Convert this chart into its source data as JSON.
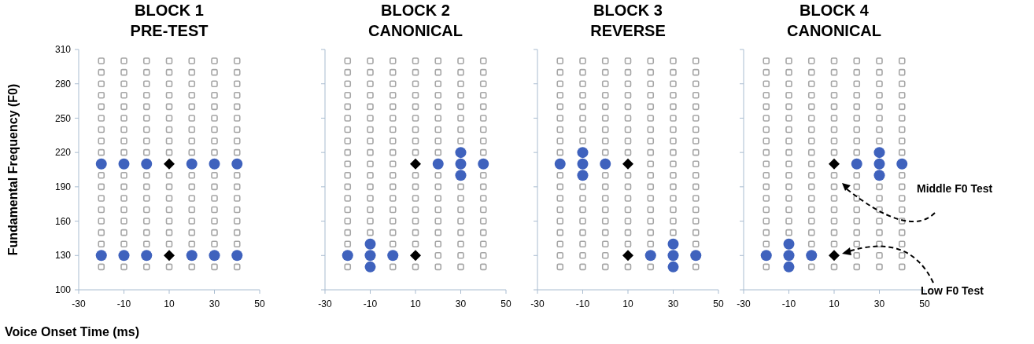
{
  "chart_data": [
    {
      "type": "scatter",
      "title": "BLOCK 1",
      "subtitle": "PRE-TEST",
      "xlabel": "Voice Onset Time (ms)",
      "ylabel": "Fundamental Frequency (F0)",
      "xlim": [
        -30,
        50
      ],
      "xticks": [
        -30,
        -10,
        10,
        30,
        50
      ],
      "ylim": [
        100,
        310
      ],
      "yticks": [
        100,
        130,
        160,
        190,
        220,
        250,
        280,
        310
      ],
      "series": [
        {
          "marker": "square",
          "color": "#a6a6a6",
          "x": [
            -20,
            -20,
            -20,
            -20,
            -20,
            -20,
            -20,
            -20,
            -20,
            -20,
            -20,
            -20,
            -20,
            -20,
            -20,
            -20,
            -20
          ],
          "values": [
            120,
            140,
            150,
            160,
            170,
            180,
            190,
            200,
            220,
            230,
            240,
            250,
            260,
            270,
            280,
            290,
            300
          ]
        },
        {
          "marker": "square",
          "color": "#a6a6a6",
          "x": [
            -10,
            -10,
            -10,
            -10,
            -10,
            -10,
            -10,
            -10,
            -10,
            -10,
            -10,
            -10,
            -10,
            -10,
            -10,
            -10,
            -10
          ],
          "values": [
            120,
            140,
            150,
            160,
            170,
            180,
            190,
            200,
            220,
            230,
            240,
            250,
            260,
            270,
            280,
            290,
            300
          ]
        },
        {
          "marker": "square",
          "color": "#a6a6a6",
          "x": [
            0,
            0,
            0,
            0,
            0,
            0,
            0,
            0,
            0,
            0,
            0,
            0,
            0,
            0,
            0,
            0,
            0
          ],
          "values": [
            120,
            140,
            150,
            160,
            170,
            180,
            190,
            200,
            220,
            230,
            240,
            250,
            260,
            270,
            280,
            290,
            300
          ]
        },
        {
          "marker": "square",
          "color": "#a6a6a6",
          "x": [
            10,
            10,
            10,
            10,
            10,
            10,
            10,
            10,
            10,
            10,
            10,
            10,
            10,
            10,
            10,
            10,
            10
          ],
          "values": [
            120,
            140,
            150,
            160,
            170,
            180,
            190,
            200,
            220,
            230,
            240,
            250,
            260,
            270,
            280,
            290,
            300
          ]
        },
        {
          "marker": "square",
          "color": "#a6a6a6",
          "x": [
            20,
            20,
            20,
            20,
            20,
            20,
            20,
            20,
            20,
            20,
            20,
            20,
            20,
            20,
            20,
            20,
            20
          ],
          "values": [
            120,
            140,
            150,
            160,
            170,
            180,
            190,
            200,
            220,
            230,
            240,
            250,
            260,
            270,
            280,
            290,
            300
          ]
        },
        {
          "marker": "square",
          "color": "#a6a6a6",
          "x": [
            30,
            30,
            30,
            30,
            30,
            30,
            30,
            30,
            30,
            30,
            30,
            30,
            30,
            30,
            30,
            30,
            30
          ],
          "values": [
            120,
            140,
            150,
            160,
            170,
            180,
            190,
            200,
            220,
            230,
            240,
            250,
            260,
            270,
            280,
            290,
            300
          ]
        },
        {
          "marker": "square",
          "color": "#a6a6a6",
          "x": [
            40,
            40,
            40,
            40,
            40,
            40,
            40,
            40,
            40,
            40,
            40,
            40,
            40,
            40,
            40,
            40,
            40
          ],
          "values": [
            120,
            140,
            150,
            160,
            170,
            180,
            190,
            200,
            220,
            230,
            240,
            250,
            260,
            270,
            280,
            290,
            300
          ]
        },
        {
          "marker": "circle",
          "color": "#3f62bd",
          "x": [
            -20,
            -10,
            0,
            20,
            30,
            40,
            -20,
            -10,
            0,
            20,
            30,
            40
          ],
          "values": [
            210,
            210,
            210,
            210,
            210,
            210,
            130,
            130,
            130,
            130,
            130,
            130
          ]
        },
        {
          "marker": "diamond",
          "color": "#000000",
          "x": [
            10,
            10
          ],
          "values": [
            210,
            130
          ]
        }
      ]
    },
    {
      "type": "scatter",
      "title": "BLOCK 2",
      "subtitle": "CANONICAL",
      "tick_labels": "x",
      "xlim": [
        -30,
        50
      ],
      "xticks": [
        -30,
        -10,
        10,
        30,
        50
      ],
      "ylim": [
        100,
        310
      ],
      "yticks": [
        {
          "value": 100,
          "label": null
        },
        {
          "value": 130,
          "label": null
        },
        {
          "value": 160,
          "label": null
        },
        {
          "value": 190,
          "label": null
        },
        {
          "value": 220,
          "label": null
        },
        {
          "value": 250,
          "label": null
        },
        {
          "value": 280,
          "label": null
        },
        {
          "value": 310,
          "label": null
        }
      ],
      "series": [
        {
          "marker": "square",
          "color": "#a6a6a6",
          "x": [
            -20,
            -20,
            -20,
            -20,
            -20,
            -20,
            -20,
            -20,
            -20,
            -20,
            -20,
            -20,
            -20,
            -20,
            -20,
            -20,
            -20,
            -20
          ],
          "values": [
            120,
            140,
            150,
            160,
            170,
            180,
            190,
            200,
            210,
            220,
            230,
            240,
            250,
            260,
            270,
            280,
            290,
            300
          ]
        },
        {
          "marker": "square",
          "color": "#a6a6a6",
          "x": [
            -10,
            -10,
            -10,
            -10,
            -10,
            -10,
            -10,
            -10,
            -10,
            -10,
            -10,
            -10,
            -10,
            -10,
            -10,
            -10
          ],
          "values": [
            150,
            160,
            170,
            180,
            190,
            200,
            210,
            220,
            230,
            240,
            250,
            260,
            270,
            280,
            290,
            300
          ]
        },
        {
          "marker": "square",
          "color": "#a6a6a6",
          "x": [
            0,
            0,
            0,
            0,
            0,
            0,
            0,
            0,
            0,
            0,
            0,
            0,
            0,
            0,
            0,
            0,
            0,
            0
          ],
          "values": [
            120,
            140,
            150,
            160,
            170,
            180,
            190,
            200,
            210,
            220,
            230,
            240,
            250,
            260,
            270,
            280,
            290,
            300
          ]
        },
        {
          "marker": "square",
          "color": "#a6a6a6",
          "x": [
            10,
            10,
            10,
            10,
            10,
            10,
            10,
            10,
            10,
            10,
            10,
            10,
            10,
            10,
            10,
            10,
            10
          ],
          "values": [
            120,
            140,
            150,
            160,
            170,
            180,
            190,
            200,
            220,
            230,
            240,
            250,
            260,
            270,
            280,
            290,
            300
          ]
        },
        {
          "marker": "square",
          "color": "#a6a6a6",
          "x": [
            20,
            20,
            20,
            20,
            20,
            20,
            20,
            20,
            20,
            20,
            20,
            20,
            20,
            20,
            20,
            20,
            20,
            20
          ],
          "values": [
            120,
            130,
            140,
            150,
            160,
            170,
            180,
            190,
            200,
            220,
            230,
            240,
            250,
            260,
            270,
            280,
            290,
            300
          ]
        },
        {
          "marker": "square",
          "color": "#a6a6a6",
          "x": [
            30,
            30,
            30,
            30,
            30,
            30,
            30,
            30,
            30,
            30,
            30,
            30,
            30,
            30,
            30,
            30
          ],
          "values": [
            120,
            130,
            140,
            150,
            160,
            170,
            180,
            190,
            230,
            240,
            250,
            260,
            270,
            280,
            290,
            300
          ]
        },
        {
          "marker": "square",
          "color": "#a6a6a6",
          "x": [
            40,
            40,
            40,
            40,
            40,
            40,
            40,
            40,
            40,
            40,
            40,
            40,
            40,
            40,
            40,
            40,
            40,
            40
          ],
          "values": [
            120,
            130,
            140,
            150,
            160,
            170,
            180,
            190,
            200,
            220,
            230,
            240,
            250,
            260,
            270,
            280,
            290,
            300
          ]
        },
        {
          "marker": "circle",
          "color": "#3f62bd",
          "x": [
            -20,
            -10,
            -10,
            -10,
            0,
            20,
            30,
            30,
            30,
            40
          ],
          "values": [
            130,
            120,
            130,
            140,
            130,
            210,
            200,
            210,
            220,
            210
          ]
        },
        {
          "marker": "diamond",
          "color": "#000000",
          "x": [
            10,
            10
          ],
          "values": [
            210,
            130
          ]
        }
      ]
    },
    {
      "type": "scatter",
      "title": "BLOCK 3",
      "subtitle": "REVERSE",
      "tick_labels": "x",
      "xlim": [
        -30,
        50
      ],
      "xticks": [
        -30,
        -10,
        10,
        30,
        50
      ],
      "ylim": [
        100,
        310
      ],
      "yticks": [
        {
          "value": 100,
          "label": null
        },
        {
          "value": 130,
          "label": null
        },
        {
          "value": 160,
          "label": null
        },
        {
          "value": 190,
          "label": null
        },
        {
          "value": 220,
          "label": null
        },
        {
          "value": 250,
          "label": null
        },
        {
          "value": 280,
          "label": null
        },
        {
          "value": 310,
          "label": null
        }
      ],
      "series": [
        {
          "marker": "square",
          "color": "#a6a6a6",
          "x": [
            -20,
            -20,
            -20,
            -20,
            -20,
            -20,
            -20,
            -20,
            -20,
            -20,
            -20,
            -20,
            -20,
            -20,
            -20,
            -20,
            -20,
            -20
          ],
          "values": [
            120,
            130,
            140,
            150,
            160,
            170,
            180,
            190,
            200,
            220,
            230,
            240,
            250,
            260,
            270,
            280,
            290,
            300
          ]
        },
        {
          "marker": "square",
          "color": "#a6a6a6",
          "x": [
            -10,
            -10,
            -10,
            -10,
            -10,
            -10,
            -10,
            -10,
            -10,
            -10,
            -10,
            -10,
            -10,
            -10,
            -10,
            -10
          ],
          "values": [
            120,
            130,
            140,
            150,
            160,
            170,
            180,
            190,
            230,
            240,
            250,
            260,
            270,
            280,
            290,
            300
          ]
        },
        {
          "marker": "square",
          "color": "#a6a6a6",
          "x": [
            0,
            0,
            0,
            0,
            0,
            0,
            0,
            0,
            0,
            0,
            0,
            0,
            0,
            0,
            0,
            0,
            0,
            0
          ],
          "values": [
            120,
            130,
            140,
            150,
            160,
            170,
            180,
            190,
            200,
            220,
            230,
            240,
            250,
            260,
            270,
            280,
            290,
            300
          ]
        },
        {
          "marker": "square",
          "color": "#a6a6a6",
          "x": [
            10,
            10,
            10,
            10,
            10,
            10,
            10,
            10,
            10,
            10,
            10,
            10,
            10,
            10,
            10,
            10,
            10
          ],
          "values": [
            120,
            140,
            150,
            160,
            170,
            180,
            190,
            200,
            220,
            230,
            240,
            250,
            260,
            270,
            280,
            290,
            300
          ]
        },
        {
          "marker": "square",
          "color": "#a6a6a6",
          "x": [
            20,
            20,
            20,
            20,
            20,
            20,
            20,
            20,
            20,
            20,
            20,
            20,
            20,
            20,
            20,
            20,
            20,
            20
          ],
          "values": [
            120,
            140,
            150,
            160,
            170,
            180,
            190,
            200,
            210,
            220,
            230,
            240,
            250,
            260,
            270,
            280,
            290,
            300
          ]
        },
        {
          "marker": "square",
          "color": "#a6a6a6",
          "x": [
            30,
            30,
            30,
            30,
            30,
            30,
            30,
            30,
            30,
            30,
            30,
            30,
            30,
            30,
            30,
            30
          ],
          "values": [
            150,
            160,
            170,
            180,
            190,
            200,
            210,
            220,
            230,
            240,
            250,
            260,
            270,
            280,
            290,
            300
          ]
        },
        {
          "marker": "square",
          "color": "#a6a6a6",
          "x": [
            40,
            40,
            40,
            40,
            40,
            40,
            40,
            40,
            40,
            40,
            40,
            40,
            40,
            40,
            40,
            40,
            40,
            40
          ],
          "values": [
            120,
            140,
            150,
            160,
            170,
            180,
            190,
            200,
            210,
            220,
            230,
            240,
            250,
            260,
            270,
            280,
            290,
            300
          ]
        },
        {
          "marker": "circle",
          "color": "#3f62bd",
          "x": [
            -20,
            -10,
            -10,
            -10,
            0,
            20,
            30,
            30,
            30,
            40
          ],
          "values": [
            210,
            200,
            210,
            220,
            210,
            130,
            120,
            130,
            140,
            130
          ]
        },
        {
          "marker": "diamond",
          "color": "#000000",
          "x": [
            10,
            10
          ],
          "values": [
            210,
            130
          ]
        }
      ]
    },
    {
      "type": "scatter",
      "title": "BLOCK 4",
      "subtitle": "CANONICAL",
      "tick_labels": "x",
      "xlim": [
        -30,
        50
      ],
      "xticks": [
        -30,
        -10,
        10,
        30,
        50
      ],
      "ylim": [
        100,
        310
      ],
      "yticks": [
        {
          "value": 100,
          "label": null
        },
        {
          "value": 130,
          "label": null
        },
        {
          "value": 160,
          "label": null
        },
        {
          "value": 190,
          "label": null
        },
        {
          "value": 220,
          "label": null
        },
        {
          "value": 250,
          "label": null
        },
        {
          "value": 280,
          "label": null
        },
        {
          "value": 310,
          "label": null
        }
      ],
      "annotations": [
        "Middle F0 Test",
        "Low F0 Test"
      ],
      "series": [
        {
          "marker": "square",
          "color": "#a6a6a6",
          "x": [
            -20,
            -20,
            -20,
            -20,
            -20,
            -20,
            -20,
            -20,
            -20,
            -20,
            -20,
            -20,
            -20,
            -20,
            -20,
            -20,
            -20,
            -20
          ],
          "values": [
            120,
            140,
            150,
            160,
            170,
            180,
            190,
            200,
            210,
            220,
            230,
            240,
            250,
            260,
            270,
            280,
            290,
            300
          ]
        },
        {
          "marker": "square",
          "color": "#a6a6a6",
          "x": [
            -10,
            -10,
            -10,
            -10,
            -10,
            -10,
            -10,
            -10,
            -10,
            -10,
            -10,
            -10,
            -10,
            -10,
            -10,
            -10
          ],
          "values": [
            150,
            160,
            170,
            180,
            190,
            200,
            210,
            220,
            230,
            240,
            250,
            260,
            270,
            280,
            290,
            300
          ]
        },
        {
          "marker": "square",
          "color": "#a6a6a6",
          "x": [
            0,
            0,
            0,
            0,
            0,
            0,
            0,
            0,
            0,
            0,
            0,
            0,
            0,
            0,
            0,
            0,
            0,
            0
          ],
          "values": [
            120,
            140,
            150,
            160,
            170,
            180,
            190,
            200,
            210,
            220,
            230,
            240,
            250,
            260,
            270,
            280,
            290,
            300
          ]
        },
        {
          "marker": "square",
          "color": "#a6a6a6",
          "x": [
            10,
            10,
            10,
            10,
            10,
            10,
            10,
            10,
            10,
            10,
            10,
            10,
            10,
            10,
            10,
            10,
            10
          ],
          "values": [
            120,
            140,
            150,
            160,
            170,
            180,
            190,
            200,
            220,
            230,
            240,
            250,
            260,
            270,
            280,
            290,
            300
          ]
        },
        {
          "marker": "square",
          "color": "#a6a6a6",
          "x": [
            20,
            20,
            20,
            20,
            20,
            20,
            20,
            20,
            20,
            20,
            20,
            20,
            20,
            20,
            20,
            20,
            20,
            20
          ],
          "values": [
            120,
            130,
            140,
            150,
            160,
            170,
            180,
            190,
            200,
            220,
            230,
            240,
            250,
            260,
            270,
            280,
            290,
            300
          ]
        },
        {
          "marker": "square",
          "color": "#a6a6a6",
          "x": [
            30,
            30,
            30,
            30,
            30,
            30,
            30,
            30,
            30,
            30,
            30,
            30,
            30,
            30,
            30,
            30
          ],
          "values": [
            120,
            130,
            140,
            150,
            160,
            170,
            180,
            190,
            230,
            240,
            250,
            260,
            270,
            280,
            290,
            300
          ]
        },
        {
          "marker": "square",
          "color": "#a6a6a6",
          "x": [
            40,
            40,
            40,
            40,
            40,
            40,
            40,
            40,
            40,
            40,
            40,
            40,
            40,
            40,
            40,
            40,
            40,
            40
          ],
          "values": [
            120,
            130,
            140,
            150,
            160,
            170,
            180,
            190,
            200,
            220,
            230,
            240,
            250,
            260,
            270,
            280,
            290,
            300
          ]
        },
        {
          "marker": "circle",
          "color": "#3f62bd",
          "x": [
            -20,
            -10,
            -10,
            -10,
            0,
            20,
            30,
            30,
            30,
            40
          ],
          "values": [
            130,
            120,
            130,
            140,
            130,
            210,
            200,
            210,
            220,
            210
          ]
        },
        {
          "marker": "diamond",
          "color": "#000000",
          "x": [
            10,
            10
          ],
          "values": [
            210,
            130
          ]
        }
      ]
    }
  ]
}
